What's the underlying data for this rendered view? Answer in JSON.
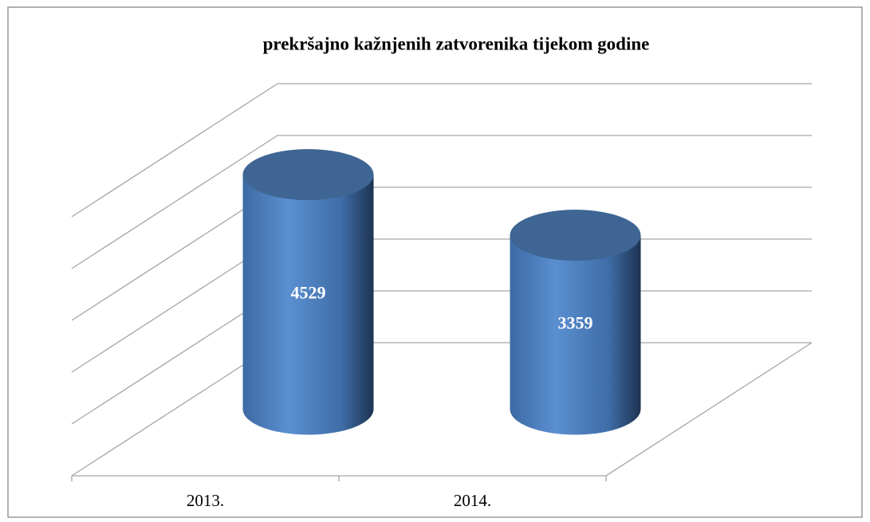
{
  "chart_data": {
    "type": "cylinder",
    "title": "prekršajno kažnjenih zatvorenika tijekom godine",
    "categories": [
      "2013.",
      "2014."
    ],
    "values": [
      4529,
      3359
    ],
    "color": "#4f81bd",
    "ylim": [
      0,
      5000
    ],
    "yticks": [
      0,
      1000,
      2000,
      3000,
      4000,
      5000
    ],
    "grid": true
  }
}
